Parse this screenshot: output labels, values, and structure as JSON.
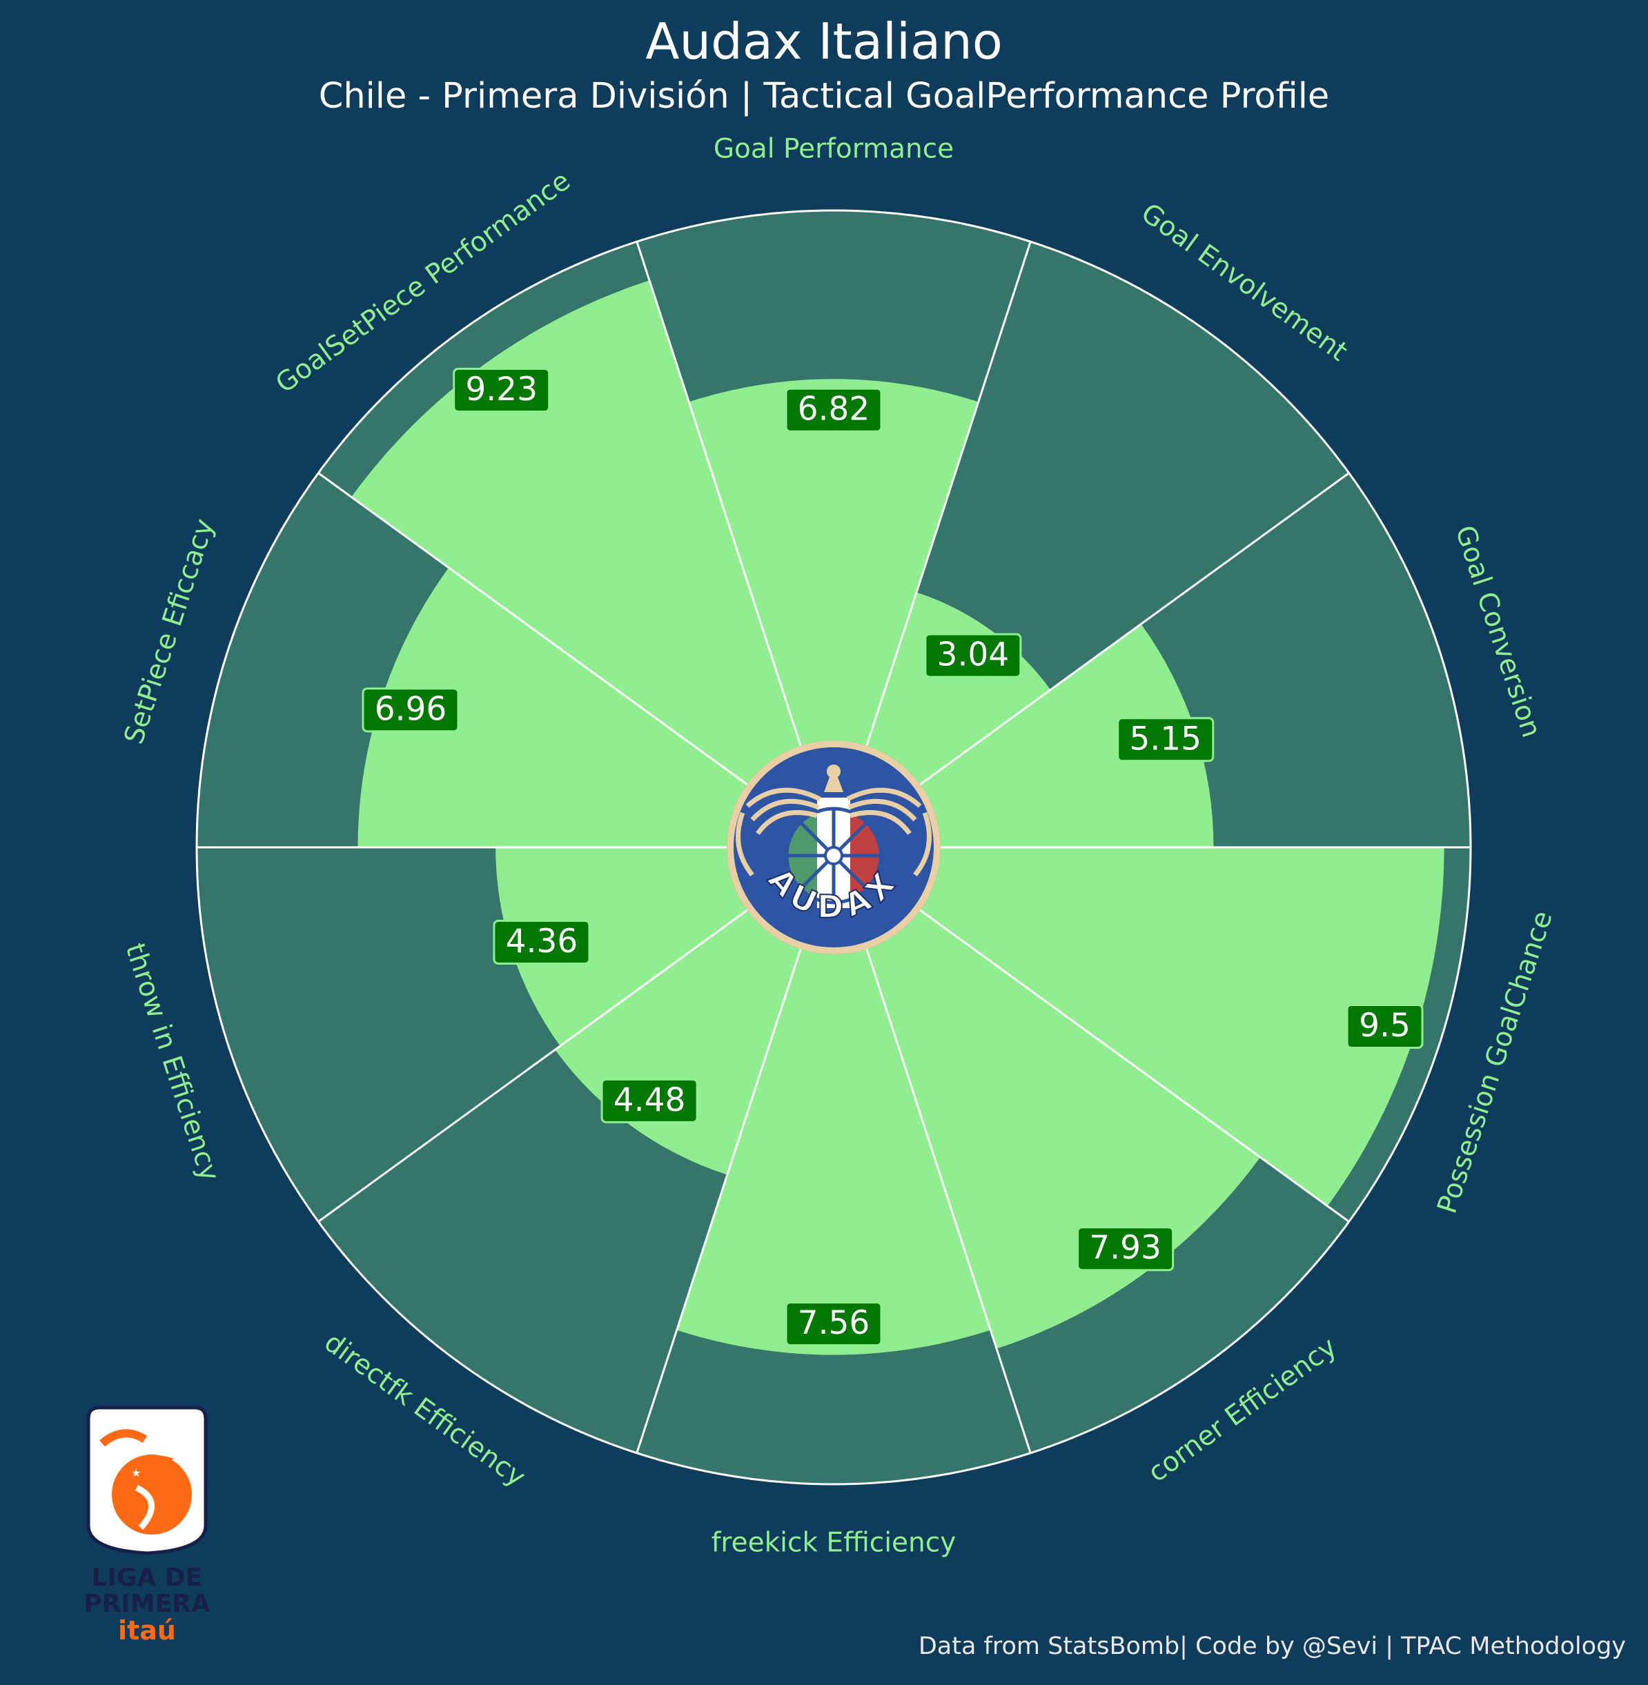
{
  "header": {
    "title": "Audax Italiano",
    "subtitle": "Chile - Primera División | Tactical GoalPerformance Profile"
  },
  "footer": {
    "credit": "Data from StatsBomb| Code by @Sevi | TPAC Methodology"
  },
  "team_badge": {
    "text": "AUDAX"
  },
  "league_logo": {
    "line1": "LIGA DE",
    "line2": "PRIMERA",
    "line3": "itaú"
  },
  "colors": {
    "background": "#0f3c5b",
    "slice_fill": "#90ee90",
    "slice_background": "#36756c",
    "value_box": "#007800",
    "value_box_edge": "#90ee90",
    "category_text": "#90ee90",
    "gridline": "#ffffff"
  },
  "chart_data": {
    "type": "pie",
    "subtype": "pizza",
    "ylim": [
      0,
      10
    ],
    "categories": [
      "Goal Performance",
      "Goal Envolvement",
      "Goal Conversion",
      "Possession GoalChance",
      "corner Efficiency",
      "freekick Efficiency",
      "directfk Efficiency",
      "throw in Efficiency",
      "SetPiece Eficcacy",
      "GoalSetPiece Performance"
    ],
    "values": [
      6.82,
      3.04,
      5.15,
      9.5,
      7.93,
      7.56,
      4.48,
      4.36,
      6.96,
      9.23
    ],
    "value_labels": [
      "6.82",
      "3.04",
      "5.15",
      "9.5",
      "7.93",
      "7.56",
      "4.48",
      "4.36",
      "6.96",
      "9.23"
    ]
  }
}
